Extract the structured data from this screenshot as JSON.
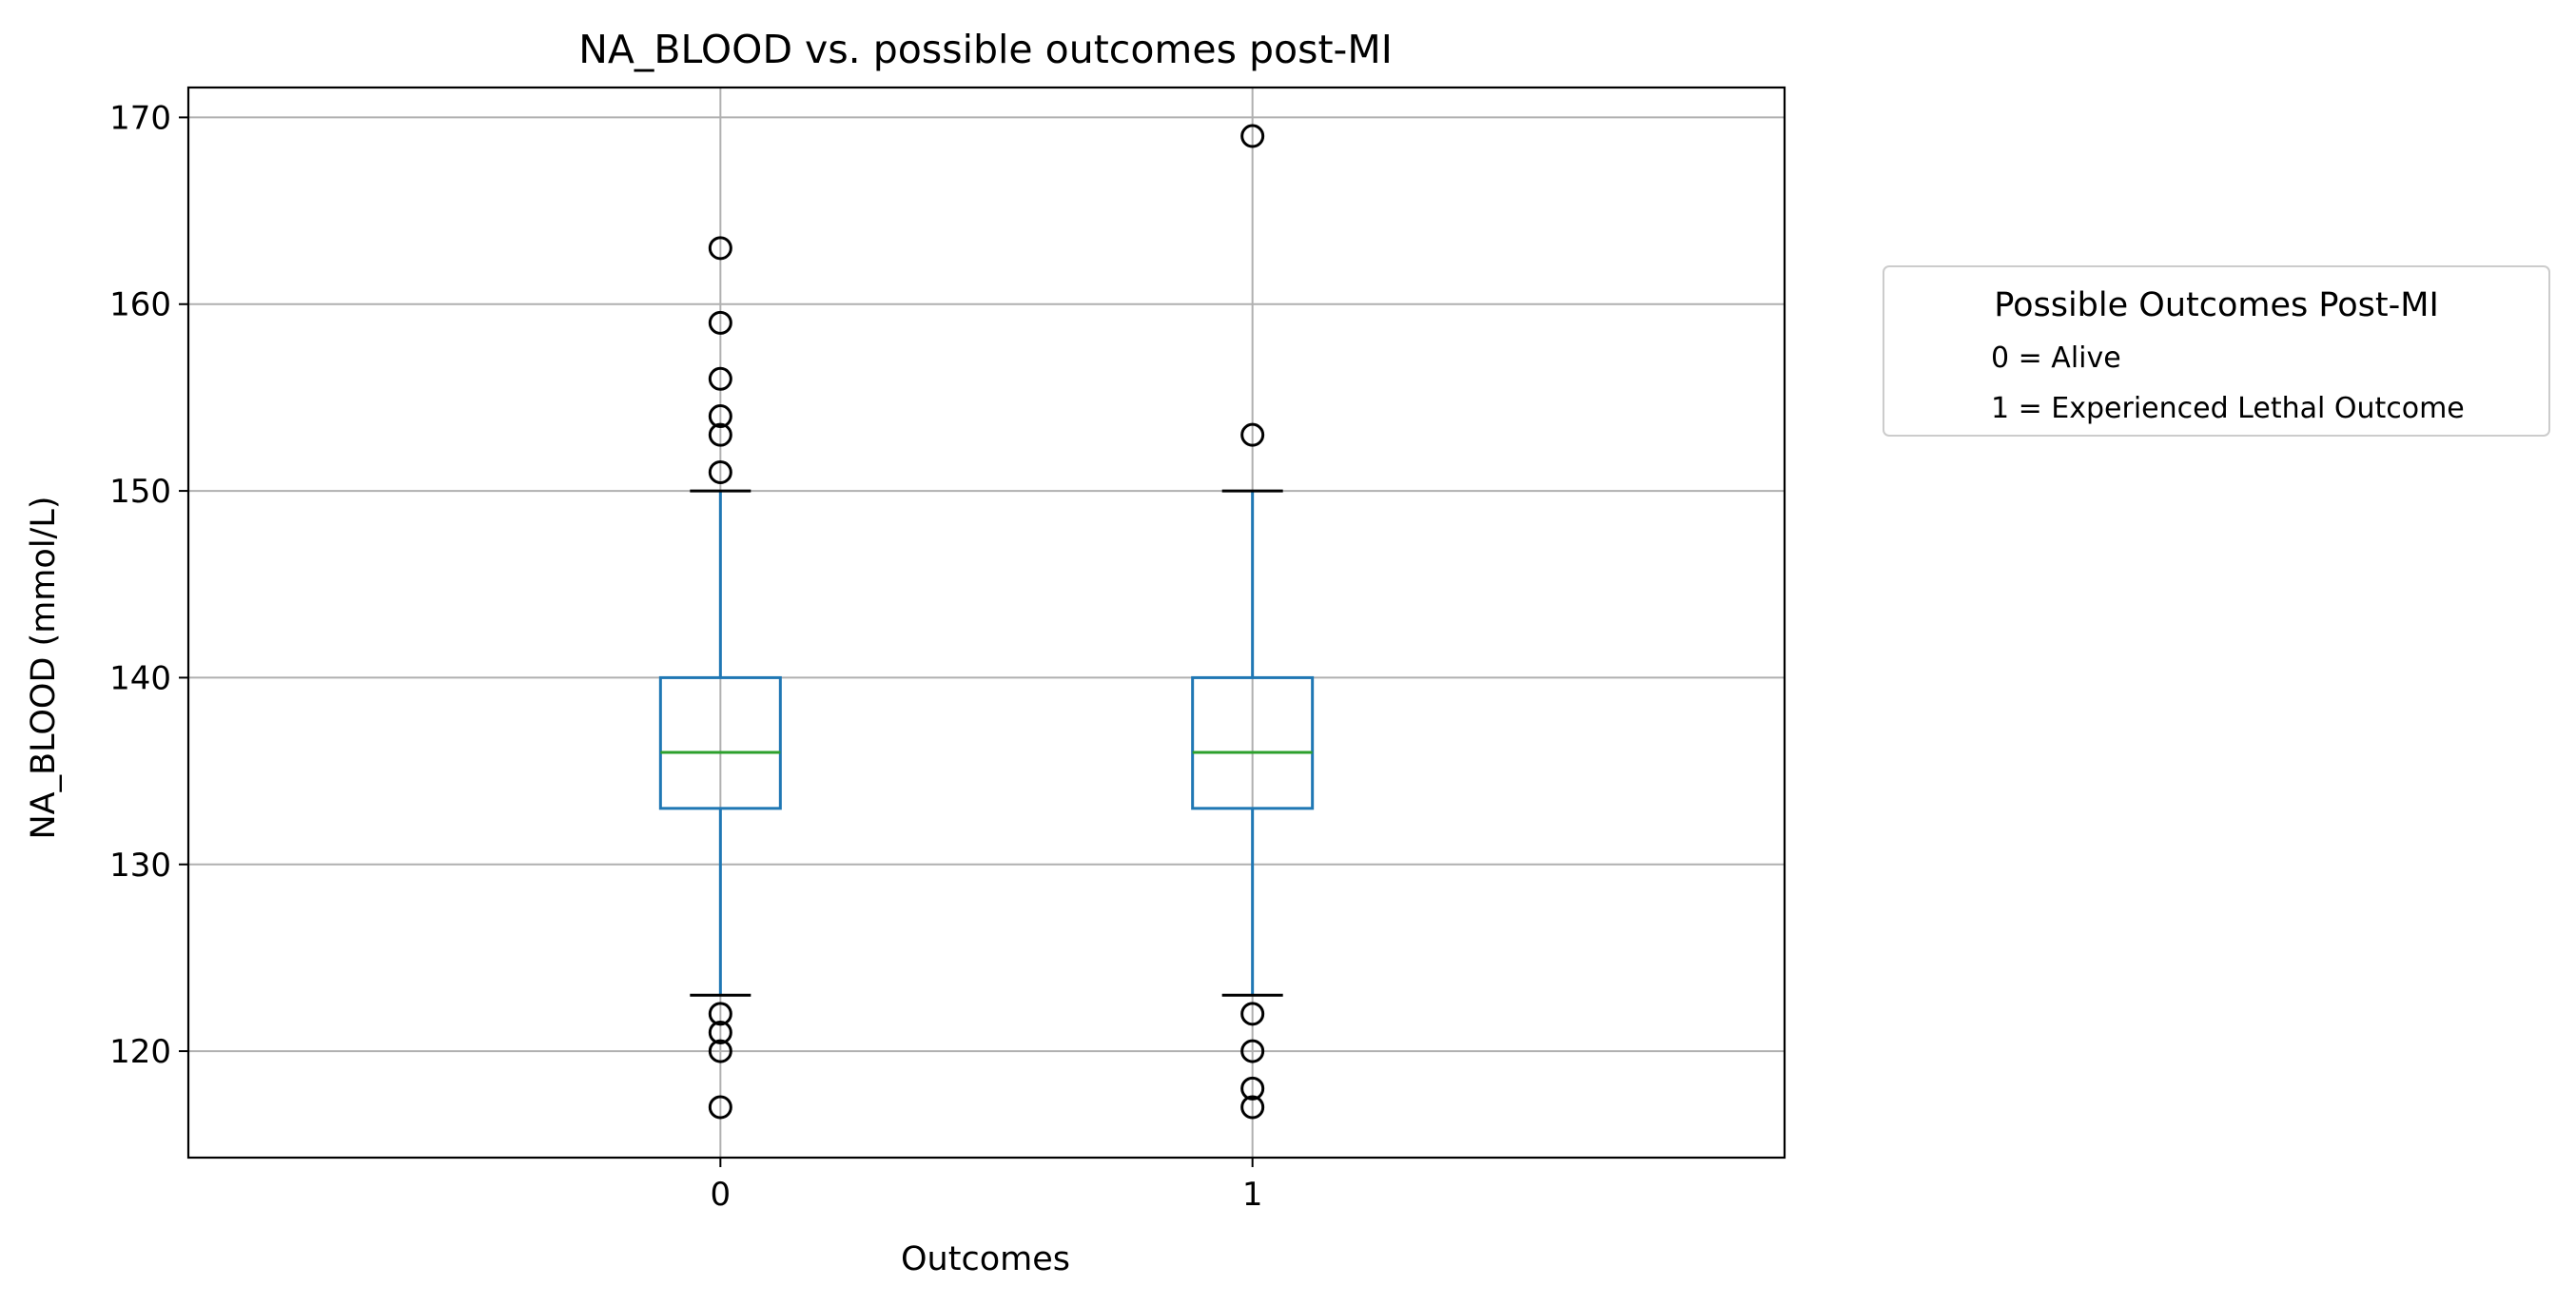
{
  "chart_data": {
    "type": "boxplot",
    "title": "NA_BLOOD vs. possible outcomes post-MI",
    "xlabel": "Outcomes",
    "ylabel": "NA_BLOOD (mmol/L)",
    "categories": [
      "0",
      "1"
    ],
    "ylim": [
      114.3,
      171.6
    ],
    "yticks": [
      120,
      130,
      140,
      150,
      160,
      170
    ],
    "grid": true,
    "boxes": [
      {
        "category": "0",
        "whisker_low": 123,
        "q1": 133,
        "median": 136,
        "q3": 140,
        "whisker_high": 150,
        "outliers": [
          163,
          159,
          156,
          154,
          153,
          151,
          122,
          121,
          120,
          117
        ]
      },
      {
        "category": "1",
        "whisker_low": 123,
        "q1": 133,
        "median": 136,
        "q3": 140,
        "whisker_high": 150,
        "outliers": [
          169,
          153,
          122,
          120,
          118,
          117
        ]
      }
    ],
    "legend": {
      "title": "Possible Outcomes Post-MI",
      "entries": [
        "0 = Alive",
        "1 = Experienced Lethal Outcome"
      ],
      "placement": "outside-right"
    },
    "colors": {
      "box": "#1f77b4",
      "median": "#2ca02c",
      "grid": "#b0b0b0",
      "outlier": "#000000"
    }
  }
}
